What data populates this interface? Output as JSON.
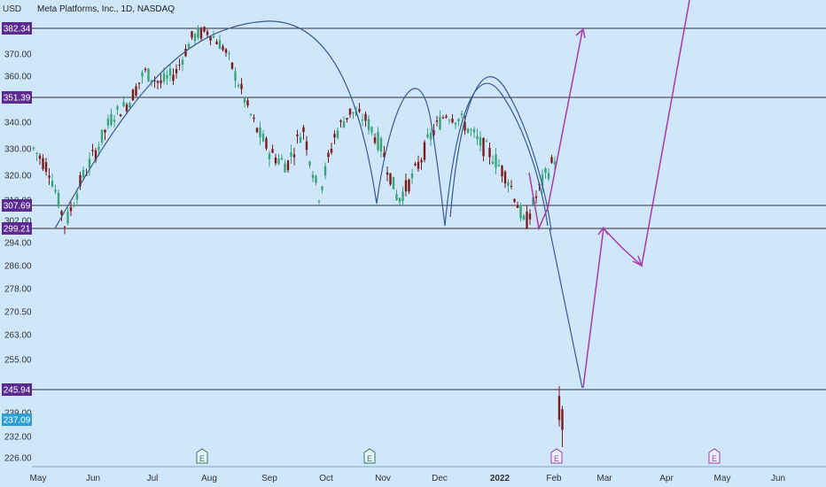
{
  "header": {
    "currency": "USD",
    "symbol_title": "Meta Platforms, Inc., 1D, NASDAQ"
  },
  "colors": {
    "background": "#cfe6fb",
    "level_line": "#333333",
    "level_label_bg": "#5b2a91",
    "last_label_bg": "#2e9fd1",
    "candle_up": "#3aa57a",
    "candle_down": "#7a1c1c",
    "pattern_curve": "#3a5a8c",
    "projection_arrow": "#a83aa8",
    "earnings_badge": "#3a7a5a",
    "earnings_badge_future": "#a83aa8"
  },
  "icons": {
    "earnings": "E",
    "currency": "currency-menu-icon"
  },
  "chart_data": {
    "type": "candlestick",
    "title": "Meta Platforms, Inc., 1D, NASDAQ",
    "y_axis": {
      "ticks": [
        "370.00",
        "360.00",
        "340.00",
        "330.00",
        "320.00",
        "310.00",
        "302.00",
        "294.00",
        "286.00",
        "278.00",
        "270.50",
        "263.00",
        "255.00",
        "239.00",
        "232.00",
        "226.00"
      ],
      "range": [
        221,
        392
      ]
    },
    "x_axis": {
      "ticks": [
        "May",
        "Jun",
        "Jul",
        "Aug",
        "Sep",
        "Oct",
        "Nov",
        "Dec",
        "2022",
        "Feb",
        "Mar",
        "Apr",
        "May",
        "Jun"
      ]
    },
    "price_levels": [
      "382.34",
      "351.39",
      "307.69",
      "299.21",
      "245.94"
    ],
    "last_price": "237.09",
    "earnings_markers": [
      "E",
      "E",
      "E",
      "E"
    ],
    "price_path": [
      {
        "x": "May",
        "y": 330
      },
      {
        "x": "May",
        "y": 322
      },
      {
        "x": "May",
        "y": 300
      },
      {
        "x": "Jun",
        "y": 318
      },
      {
        "x": "Jun",
        "y": 330
      },
      {
        "x": "Jul",
        "y": 343
      },
      {
        "x": "Jul",
        "y": 349
      },
      {
        "x": "Aug",
        "y": 362
      },
      {
        "x": "Aug",
        "y": 357
      },
      {
        "x": "Aug",
        "y": 362
      },
      {
        "x": "Sep",
        "y": 378
      },
      {
        "x": "Sep",
        "y": 381
      },
      {
        "x": "Sep",
        "y": 373
      },
      {
        "x": "Sep",
        "y": 356
      },
      {
        "x": "Oct",
        "y": 338
      },
      {
        "x": "Oct",
        "y": 328
      },
      {
        "x": "Oct",
        "y": 324
      },
      {
        "x": "Oct",
        "y": 338
      },
      {
        "x": "Nov",
        "y": 312
      },
      {
        "x": "Nov",
        "y": 335
      },
      {
        "x": "Nov",
        "y": 345
      },
      {
        "x": "Nov",
        "y": 341
      },
      {
        "x": "Dec",
        "y": 330
      },
      {
        "x": "Dec",
        "y": 310
      },
      {
        "x": "Dec",
        "y": 320
      },
      {
        "x": "Dec",
        "y": 334
      },
      {
        "x": "Dec",
        "y": 344
      },
      {
        "x": "Dec",
        "y": 341
      },
      {
        "x": "2022",
        "y": 333
      },
      {
        "x": "2022",
        "y": 327
      },
      {
        "x": "2022",
        "y": 318
      },
      {
        "x": "2022",
        "y": 300
      },
      {
        "x": "Feb",
        "y": 316
      },
      {
        "x": "Feb",
        "y": 328
      }
    ],
    "post_earnings_candles": [
      {
        "x": "Feb",
        "open": 244,
        "close": 237,
        "high": 247,
        "low": 235
      },
      {
        "x": "Feb",
        "open": 240,
        "close": 234,
        "high": 241,
        "low": 229
      }
    ]
  }
}
